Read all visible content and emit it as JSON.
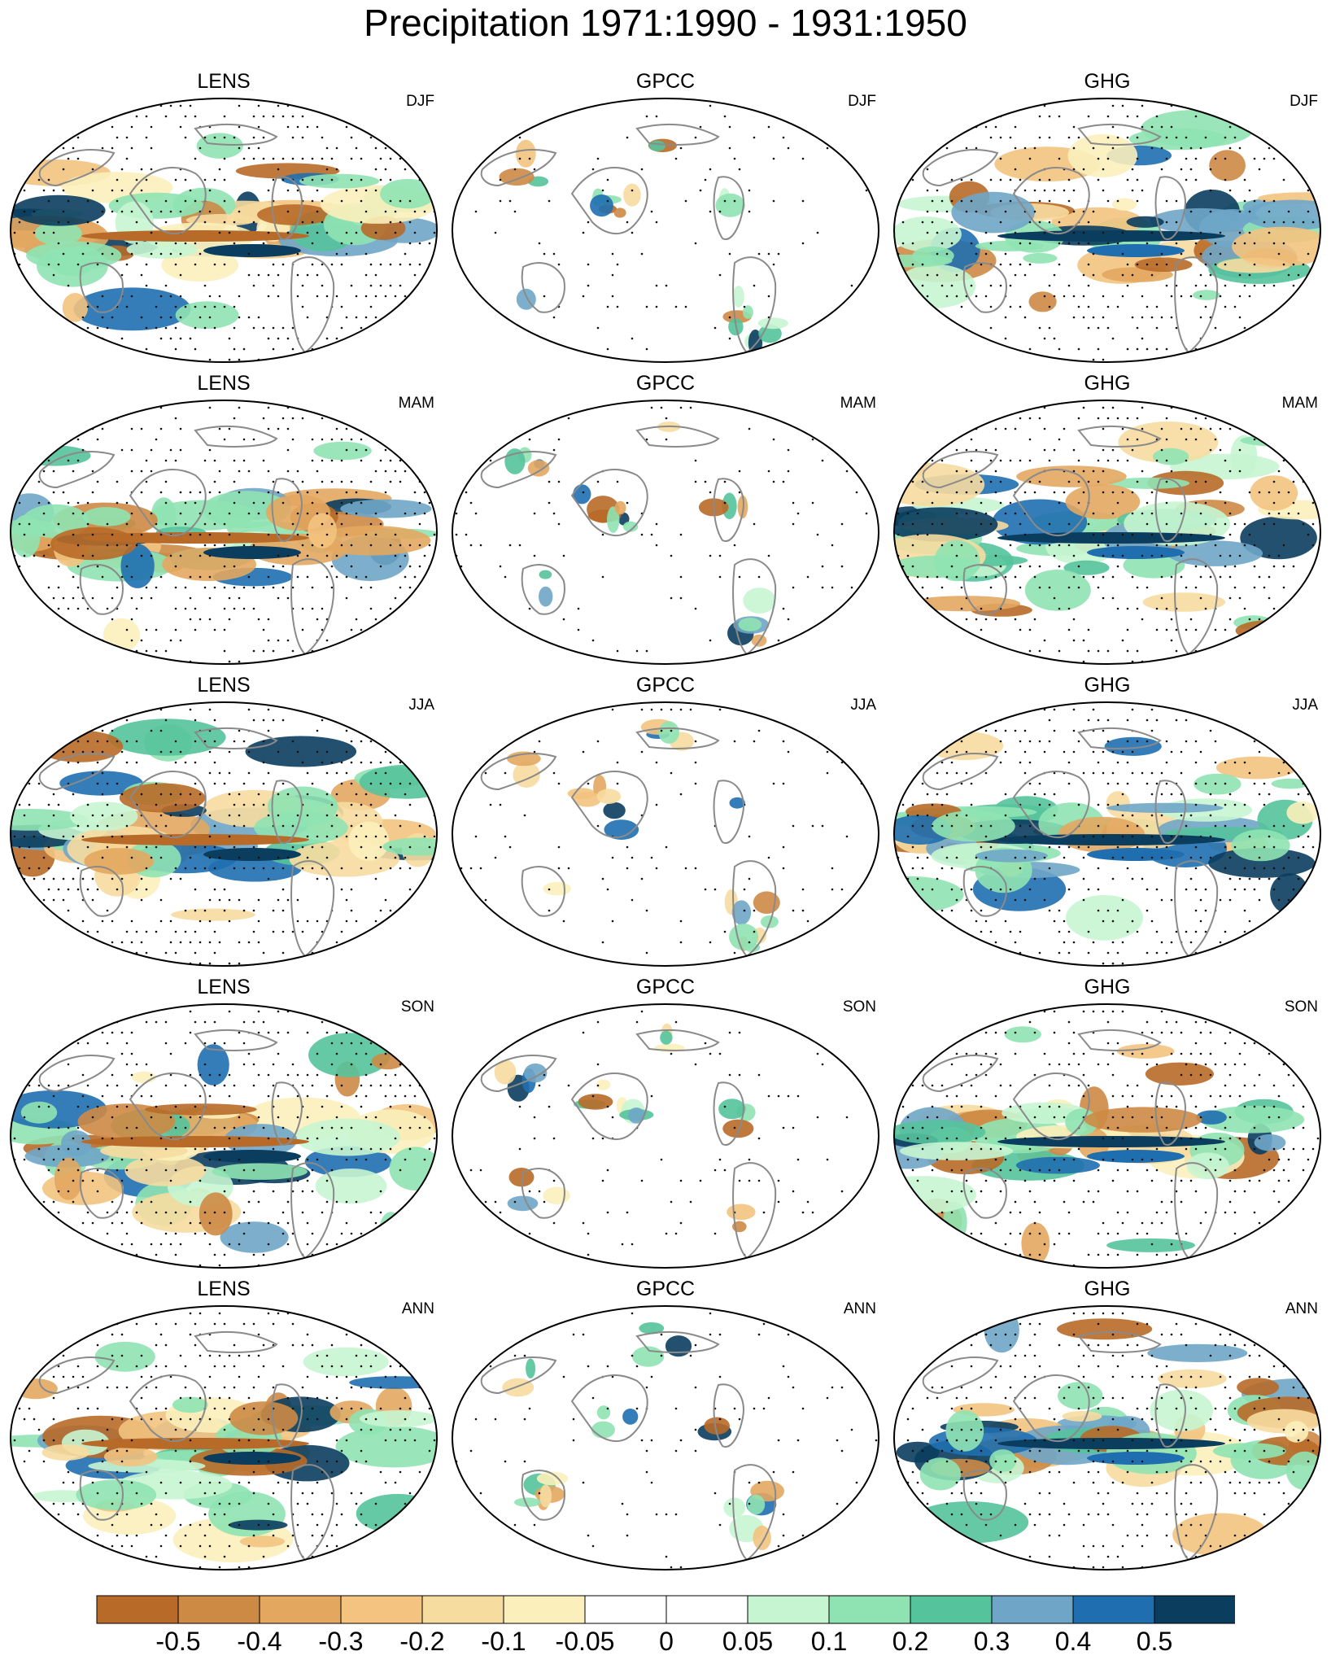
{
  "title": "Precipitation 1971:1990 - 1931:1950",
  "columns": [
    "LENS",
    "GPCC",
    "GHG"
  ],
  "seasons": [
    "DJF",
    "MAM",
    "JJA",
    "SON",
    "ANN"
  ],
  "colorbar": {
    "colors": [
      "#b86a28",
      "#cd8a45",
      "#e3a760",
      "#f3c37f",
      "#f7dca0",
      "#fbefbb",
      "#ffffff",
      "#ffffff",
      "#c6f5d2",
      "#8fe3b2",
      "#55c39c",
      "#6fa6c8",
      "#1f6fb0",
      "#0a3d5e"
    ],
    "labels": [
      "-0.5",
      "-0.4",
      "-0.3",
      "-0.2",
      "-0.1",
      "-0.05",
      "0",
      "0.05",
      "0.1",
      "0.2",
      "0.3",
      "0.4",
      "0.5"
    ]
  }
}
